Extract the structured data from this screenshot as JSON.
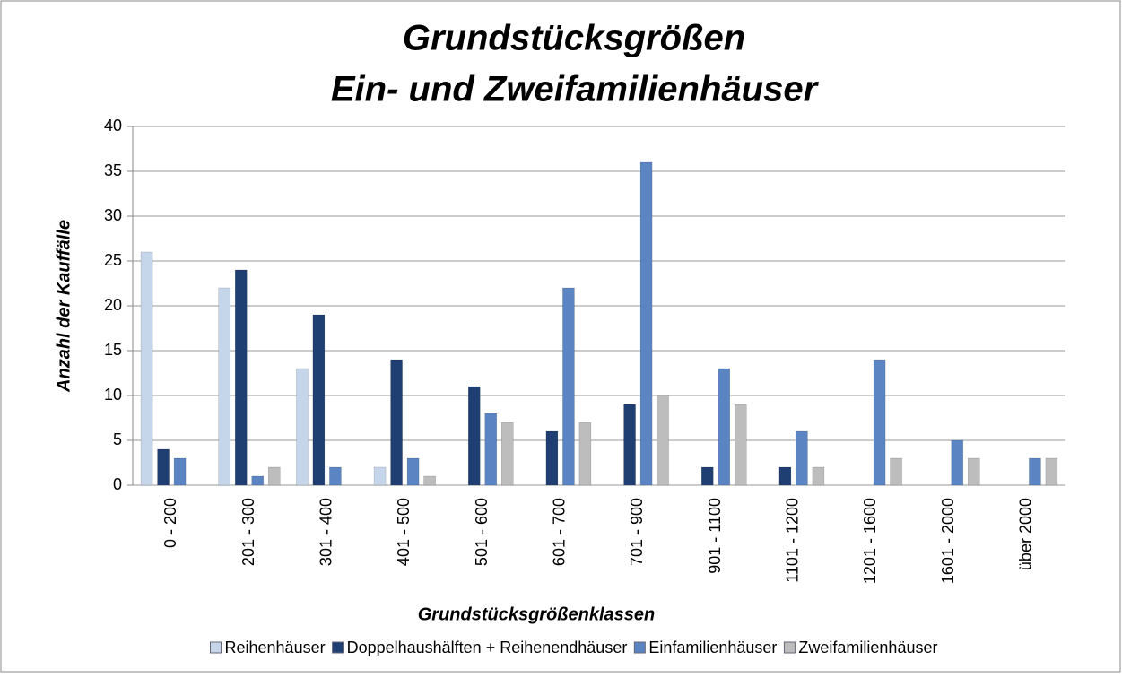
{
  "chart_data": {
    "type": "bar",
    "title": [
      "Grundstücksgrößen",
      "Ein- und Zweifamilienhäuser"
    ],
    "ylabel": "Anzahl der Kauffälle",
    "xlabel": "Grundstücksgrößenklassen",
    "categories": [
      "0 - 200",
      "201 - 300",
      "301 - 400",
      "401 - 500",
      "501 - 600",
      "601 - 700",
      "701 - 900",
      "901 - 1100",
      "1101 - 1200",
      "1201 - 1600",
      "1601 - 2000",
      "über 2000"
    ],
    "series": [
      {
        "name": "Reihenhäuser",
        "color": "#c6d6ea",
        "values": [
          26,
          22,
          13,
          2,
          0,
          0,
          0,
          0,
          0,
          0,
          0,
          0
        ]
      },
      {
        "name": "Doppelhaushälften + Reihenendhäuser",
        "color": "#1f3f73",
        "values": [
          4,
          24,
          19,
          14,
          11,
          6,
          9,
          2,
          2,
          0,
          0,
          0
        ]
      },
      {
        "name": "Einfamilienhäuser",
        "color": "#5b85c2",
        "values": [
          3,
          1,
          2,
          3,
          8,
          22,
          36,
          13,
          6,
          14,
          5,
          3
        ]
      },
      {
        "name": "Zweifamilienhäuser",
        "color": "#bdbdbd",
        "values": [
          0,
          2,
          0,
          1,
          7,
          7,
          10,
          9,
          2,
          3,
          3,
          3
        ]
      }
    ],
    "ylim": [
      0,
      40
    ],
    "yticks": [
      0,
      5,
      10,
      15,
      20,
      25,
      30,
      35,
      40
    ],
    "grid": true,
    "legend": "bottom"
  }
}
